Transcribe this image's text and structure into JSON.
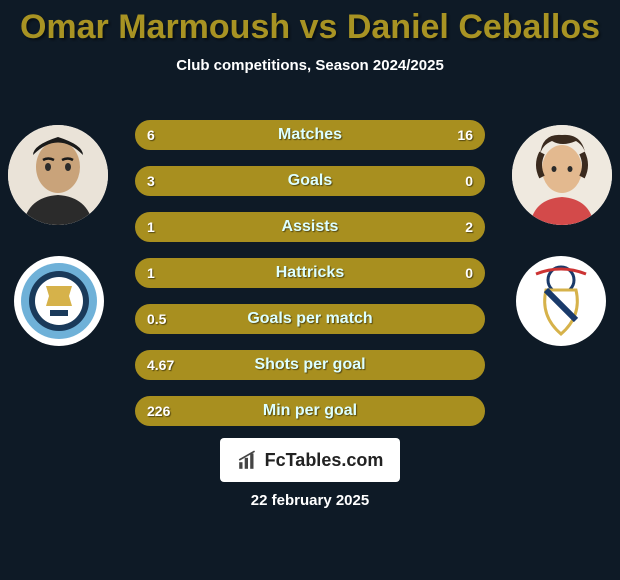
{
  "title_color": "#a89323",
  "background_color": "#0e1a26",
  "header": {
    "title": "Omar Marmoush vs Daniel Ceballos",
    "subtitle": "Club competitions, Season 2024/2025"
  },
  "players": {
    "left": {
      "name": "Omar Marmoush",
      "club": "Manchester City"
    },
    "right": {
      "name": "Daniel Ceballos",
      "club": "Real Madrid"
    }
  },
  "bars": {
    "fill_color": "#a88f1f",
    "border_color": "#a88f1f",
    "empty_color": "transparent",
    "items": [
      {
        "label": "Matches",
        "left_val": "6",
        "right_val": "16",
        "left_frac": 0.27,
        "right_frac": 0.73
      },
      {
        "label": "Goals",
        "left_val": "3",
        "right_val": "0",
        "left_frac": 1.0,
        "right_frac": 0.0
      },
      {
        "label": "Assists",
        "left_val": "1",
        "right_val": "2",
        "left_frac": 0.33,
        "right_frac": 0.67
      },
      {
        "label": "Hattricks",
        "left_val": "1",
        "right_val": "0",
        "left_frac": 1.0,
        "right_frac": 0.0
      },
      {
        "label": "Goals per match",
        "left_val": "0.5",
        "right_val": "",
        "left_frac": 1.0,
        "right_frac": 0.0
      },
      {
        "label": "Shots per goal",
        "left_val": "4.67",
        "right_val": "",
        "left_frac": 1.0,
        "right_frac": 0.0
      },
      {
        "label": "Min per goal",
        "left_val": "226",
        "right_val": "",
        "left_frac": 1.0,
        "right_frac": 0.0
      }
    ]
  },
  "footer": {
    "brand": "FcTables.com",
    "date": "22 february 2025"
  }
}
